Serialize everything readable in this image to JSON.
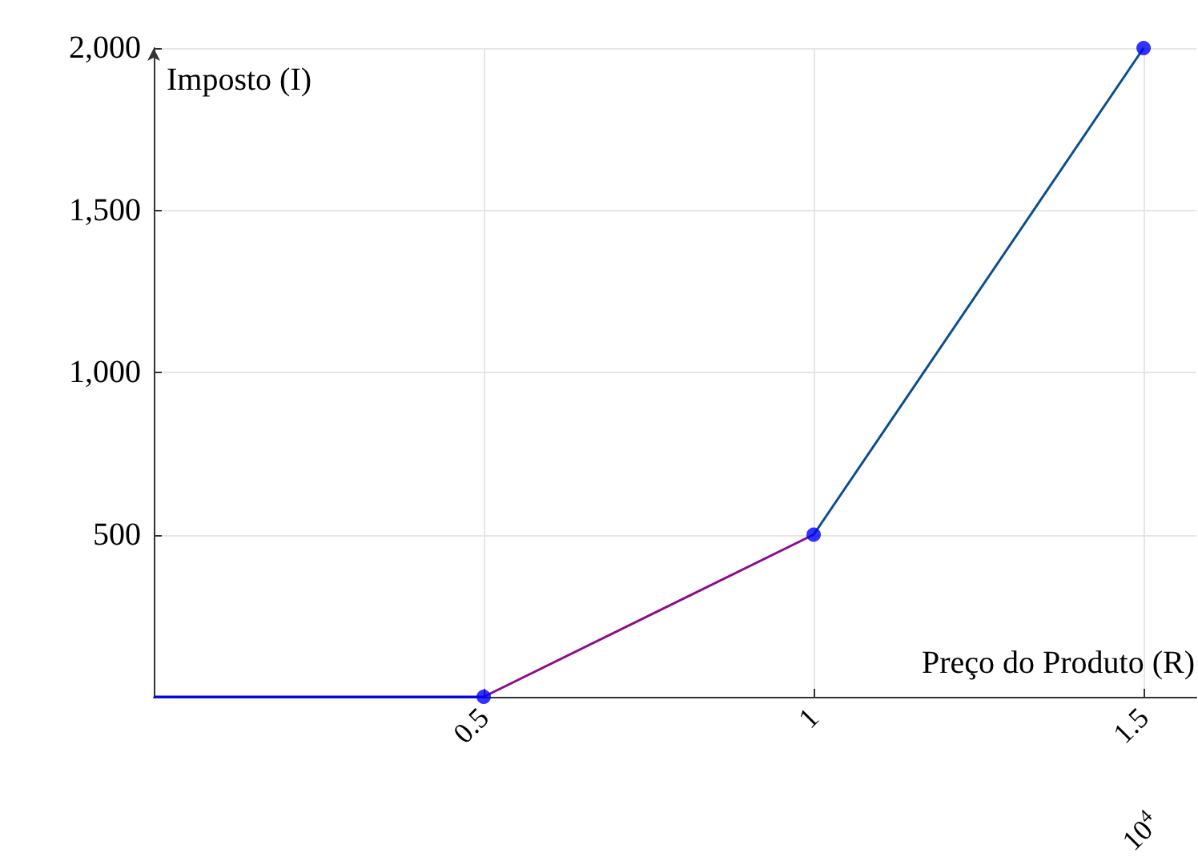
{
  "chart_data": {
    "type": "line",
    "xlabel": "Preço do Produto (R)",
    "ylabel": "Imposto (I)",
    "xlim": [
      0,
      1.58
    ],
    "xticks": [
      0.5,
      1,
      1.5
    ],
    "ylim": [
      0,
      2000
    ],
    "yticks": [
      {
        "value": 0,
        "label": null
      },
      500,
      {
        "value": 1000,
        "label": "1,000"
      },
      {
        "value": 1500,
        "label": "1,500"
      },
      {
        "value": 2000,
        "label": "2,000"
      }
    ],
    "grid": true,
    "marker": "circle",
    "annotations": [
      "10$^{4}$"
    ],
    "series": [
      {
        "color": "#0000ff",
        "marker": "none",
        "x": [
          0,
          0.5
        ],
        "values": [
          0,
          0
        ]
      },
      {
        "color": "#8b0a8b",
        "marker": "none",
        "x": [
          0.5,
          1
        ],
        "values": [
          0,
          500
        ]
      },
      {
        "color": "#0b4d8f",
        "marker": "none",
        "x": [
          1,
          1.5
        ],
        "values": [
          500,
          2000
        ]
      },
      {
        "type": "scatter",
        "color": "#0000ff",
        "x": [
          0.5,
          1,
          1.5
        ],
        "values": [
          0,
          500,
          2000
        ]
      }
    ]
  }
}
